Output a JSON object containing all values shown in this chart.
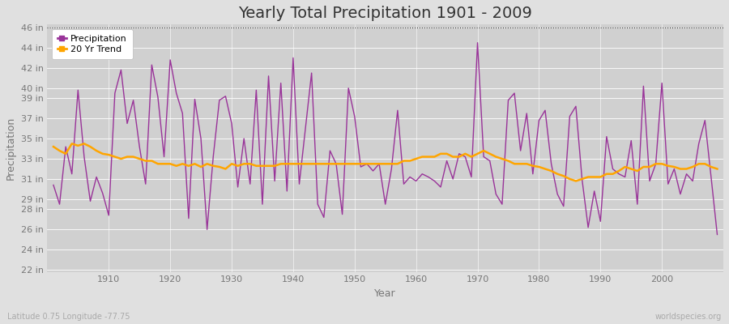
{
  "title": "Yearly Total Precipitation 1901 - 2009",
  "xlabel": "Year",
  "ylabel": "Precipitation",
  "subtitle": "Latitude 0.75 Longitude -77.75",
  "watermark": "worldspecies.org",
  "years": [
    1901,
    1902,
    1903,
    1904,
    1905,
    1906,
    1907,
    1908,
    1909,
    1910,
    1911,
    1912,
    1913,
    1914,
    1915,
    1916,
    1917,
    1918,
    1919,
    1920,
    1921,
    1922,
    1923,
    1924,
    1925,
    1926,
    1927,
    1928,
    1929,
    1930,
    1931,
    1932,
    1933,
    1934,
    1935,
    1936,
    1937,
    1938,
    1939,
    1940,
    1941,
    1942,
    1943,
    1944,
    1945,
    1946,
    1947,
    1948,
    1949,
    1950,
    1951,
    1952,
    1953,
    1954,
    1955,
    1956,
    1957,
    1958,
    1959,
    1960,
    1961,
    1962,
    1963,
    1964,
    1965,
    1966,
    1967,
    1968,
    1969,
    1970,
    1971,
    1972,
    1973,
    1974,
    1975,
    1976,
    1977,
    1978,
    1979,
    1980,
    1981,
    1982,
    1983,
    1984,
    1985,
    1986,
    1987,
    1988,
    1989,
    1990,
    1991,
    1992,
    1993,
    1994,
    1995,
    1996,
    1997,
    1998,
    1999,
    2000,
    2001,
    2002,
    2003,
    2004,
    2005,
    2006,
    2007,
    2008,
    2009
  ],
  "precipitation": [
    30.4,
    28.5,
    34.2,
    31.5,
    39.8,
    33.2,
    28.8,
    31.2,
    29.6,
    27.4,
    39.5,
    41.8,
    36.5,
    38.8,
    34.2,
    30.5,
    42.3,
    39.1,
    33.2,
    42.8,
    39.5,
    37.5,
    27.1,
    38.9,
    35.0,
    26.0,
    33.2,
    38.8,
    39.2,
    36.5,
    30.2,
    35.0,
    30.5,
    39.8,
    28.5,
    41.2,
    30.8,
    40.5,
    29.8,
    43.0,
    30.5,
    36.0,
    41.5,
    28.5,
    27.2,
    33.8,
    32.5,
    27.5,
    40.0,
    37.2,
    32.2,
    32.5,
    31.8,
    32.5,
    28.5,
    32.0,
    37.8,
    30.5,
    31.2,
    30.8,
    31.5,
    31.2,
    30.8,
    30.2,
    32.8,
    31.0,
    33.5,
    33.2,
    31.2,
    44.5,
    33.2,
    32.8,
    29.5,
    28.5,
    38.8,
    39.5,
    33.8,
    37.5,
    31.5,
    36.8,
    37.8,
    32.5,
    29.5,
    28.3,
    37.2,
    38.2,
    31.0,
    26.2,
    29.8,
    26.8,
    35.2,
    32.0,
    31.5,
    31.2,
    34.8,
    28.5,
    40.2,
    30.8,
    32.5,
    40.5,
    30.5,
    32.0,
    29.5,
    31.5,
    30.8,
    34.5,
    36.8,
    31.2,
    25.5
  ],
  "trend": [
    34.2,
    33.8,
    33.5,
    34.5,
    34.3,
    34.5,
    34.2,
    33.8,
    33.5,
    33.4,
    33.2,
    33.0,
    33.2,
    33.2,
    33.0,
    32.8,
    32.8,
    32.5,
    32.5,
    32.5,
    32.3,
    32.5,
    32.3,
    32.5,
    32.2,
    32.5,
    32.3,
    32.2,
    32.0,
    32.5,
    32.3,
    32.5,
    32.5,
    32.3,
    32.3,
    32.3,
    32.3,
    32.5,
    32.5,
    32.5,
    32.5,
    32.5,
    32.5,
    32.5,
    32.5,
    32.5,
    32.5,
    32.5,
    32.5,
    32.5,
    32.5,
    32.5,
    32.5,
    32.5,
    32.5,
    32.5,
    32.5,
    32.8,
    32.8,
    33.0,
    33.2,
    33.2,
    33.2,
    33.5,
    33.5,
    33.2,
    33.2,
    33.5,
    33.2,
    33.5,
    33.8,
    33.5,
    33.2,
    33.0,
    32.8,
    32.5,
    32.5,
    32.5,
    32.3,
    32.2,
    32.0,
    31.8,
    31.5,
    31.3,
    31.0,
    30.8,
    31.0,
    31.2,
    31.2,
    31.2,
    31.5,
    31.5,
    31.8,
    32.2,
    32.0,
    31.8,
    32.2,
    32.2,
    32.5,
    32.5,
    32.3,
    32.2,
    32.0,
    32.0,
    32.2,
    32.5,
    32.5,
    32.2,
    32.0
  ],
  "precip_color": "#993399",
  "trend_color": "#FFA500",
  "fig_bg_color": "#e0e0e0",
  "plot_bg_color": "#d0d0d0",
  "grid_color": "#c0c0c0",
  "ylim_min": 22,
  "ylim_max": 46,
  "yticks": [
    22,
    24,
    26,
    28,
    29,
    31,
    33,
    35,
    37,
    39,
    40,
    42,
    44,
    46
  ],
  "ytick_labels": [
    "22 in",
    "24 in",
    "26 in",
    "28 in",
    "29 in",
    "31 in",
    "33 in",
    "35 in",
    "37 in",
    "39 in",
    "40 in",
    "42 in",
    "44 in",
    "46 in"
  ],
  "xtick_years": [
    1910,
    1920,
    1930,
    1940,
    1950,
    1960,
    1970,
    1980,
    1990,
    2000
  ],
  "dotted_line_y": 46,
  "title_fontsize": 14,
  "axis_label_fontsize": 9,
  "tick_fontsize": 8,
  "tick_color": "#777777",
  "title_color": "#333333",
  "legend_labels": [
    "Precipitation",
    "20 Yr Trend"
  ]
}
